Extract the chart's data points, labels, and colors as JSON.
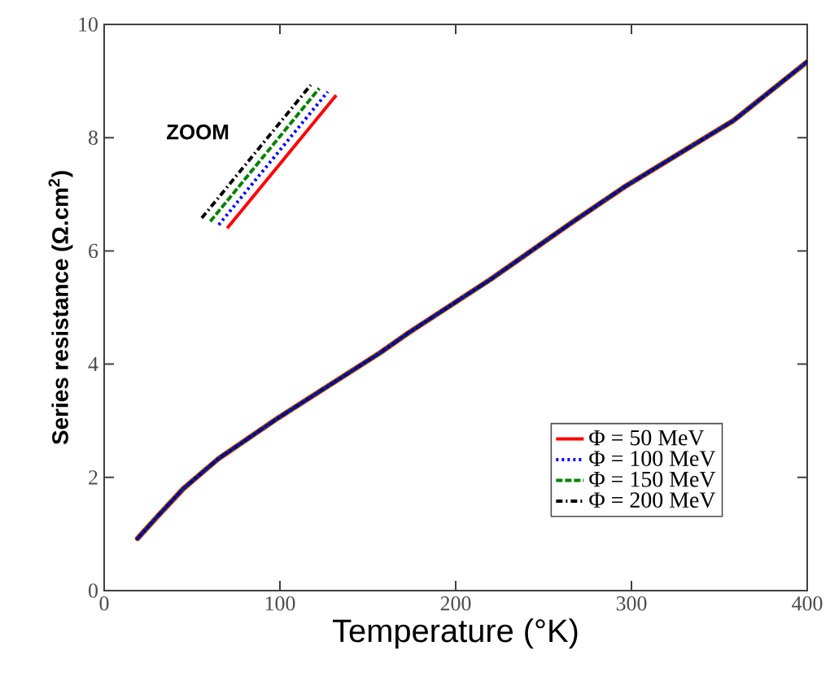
{
  "chart_data": {
    "type": "line",
    "xlabel": "Temperature (°K)",
    "ylabel": "Series resistance (Ω.cm$^{2}$)",
    "x": [
      19,
      30,
      45,
      65,
      99,
      157,
      173,
      220,
      266,
      296,
      358,
      400
    ],
    "series": [
      {
        "name": "Φ  = 50 MeV",
        "color": "#ff0000",
        "line_style": "solid",
        "values": [
          0.92,
          1.3,
          1.8,
          2.33,
          3.05,
          4.2,
          4.55,
          5.5,
          6.5,
          7.13,
          8.3,
          9.34
        ]
      },
      {
        "name": "Φ  = 100 MeV",
        "color": "#0000ff",
        "line_style": "dotted",
        "values": [
          0.92,
          1.3,
          1.8,
          2.33,
          3.05,
          4.2,
          4.55,
          5.5,
          6.5,
          7.13,
          8.3,
          9.34
        ]
      },
      {
        "name": "Φ  = 150 MeV",
        "color": "#008000",
        "line_style": "dashed",
        "values": [
          0.92,
          1.3,
          1.8,
          2.33,
          3.05,
          4.2,
          4.55,
          5.5,
          6.5,
          7.13,
          8.3,
          9.34
        ]
      },
      {
        "name": "Φ  = 200 MeV",
        "color": "#000000",
        "line_style": "dashdot",
        "values": [
          0.92,
          1.3,
          1.8,
          2.33,
          3.05,
          4.2,
          4.55,
          5.5,
          6.5,
          7.13,
          8.3,
          9.34
        ]
      }
    ],
    "xlim": [
      0,
      400
    ],
    "xticks": [
      0,
      100,
      200,
      300,
      400
    ],
    "ylim": [
      0,
      10
    ],
    "yticks": [
      0,
      2,
      4,
      6,
      8,
      10
    ],
    "grid": false,
    "legend": "bottom right",
    "annotations": [
      "ZOOM"
    ]
  }
}
